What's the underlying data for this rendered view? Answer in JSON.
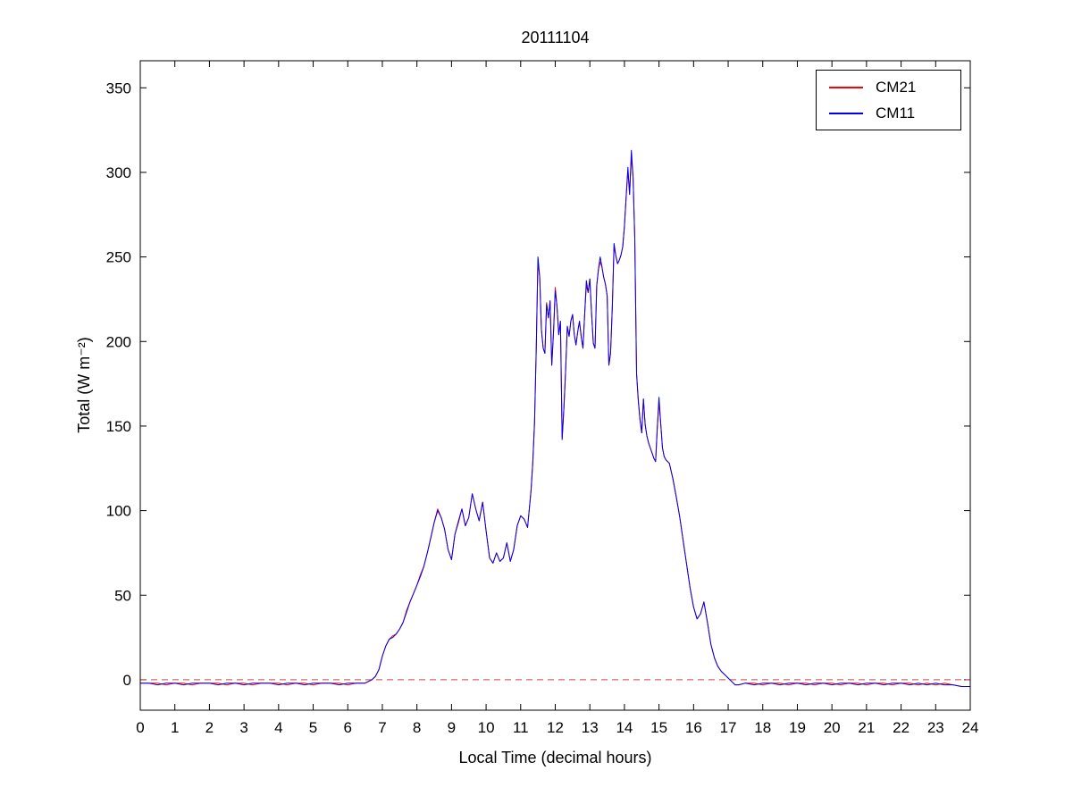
{
  "figure": {
    "background": "#ffffff"
  },
  "chart_data": {
    "type": "line",
    "title": "20111104",
    "xlabel": "Local Time (decimal hours)",
    "ylabel": "Total (W m⁻²)",
    "xlim": [
      0,
      24
    ],
    "ylim": [
      -18,
      366
    ],
    "xticks": [
      0,
      1,
      2,
      3,
      4,
      5,
      6,
      7,
      8,
      9,
      10,
      11,
      12,
      13,
      14,
      15,
      16,
      17,
      18,
      19,
      20,
      21,
      22,
      23,
      24
    ],
    "yticks": [
      0,
      50,
      100,
      150,
      200,
      250,
      300,
      350
    ],
    "grid": false,
    "axis_color": "#000000",
    "legend": {
      "position": "top-right",
      "border": true
    },
    "zero_line": {
      "y": 0,
      "style": "dashed",
      "color": "#cc4444"
    },
    "x": [
      0,
      0.25,
      0.5,
      0.75,
      1,
      1.25,
      1.5,
      1.75,
      2,
      2.25,
      2.5,
      2.75,
      3,
      3.25,
      3.5,
      3.75,
      4,
      4.25,
      4.5,
      4.75,
      5,
      5.25,
      5.5,
      5.75,
      6,
      6.25,
      6.5,
      6.7,
      6.8,
      6.9,
      7,
      7.1,
      7.2,
      7.3,
      7.4,
      7.5,
      7.6,
      7.7,
      7.8,
      7.9,
      8,
      8.1,
      8.2,
      8.3,
      8.4,
      8.5,
      8.6,
      8.7,
      8.8,
      8.9,
      9,
      9.1,
      9.2,
      9.3,
      9.4,
      9.5,
      9.6,
      9.7,
      9.8,
      9.9,
      10,
      10.1,
      10.2,
      10.3,
      10.4,
      10.5,
      10.6,
      10.7,
      10.8,
      10.9,
      11,
      11.1,
      11.2,
      11.3,
      11.35,
      11.4,
      11.45,
      11.5,
      11.55,
      11.6,
      11.65,
      11.7,
      11.75,
      11.8,
      11.85,
      11.9,
      11.95,
      12,
      12.05,
      12.1,
      12.15,
      12.2,
      12.25,
      12.3,
      12.35,
      12.4,
      12.45,
      12.5,
      12.55,
      12.6,
      12.65,
      12.7,
      12.75,
      12.8,
      12.85,
      12.9,
      12.95,
      13,
      13.05,
      13.1,
      13.15,
      13.2,
      13.25,
      13.3,
      13.35,
      13.4,
      13.45,
      13.5,
      13.55,
      13.6,
      13.65,
      13.7,
      13.75,
      13.8,
      13.85,
      13.9,
      13.95,
      14,
      14.05,
      14.1,
      14.15,
      14.2,
      14.25,
      14.3,
      14.35,
      14.4,
      14.45,
      14.5,
      14.55,
      14.6,
      14.65,
      14.7,
      14.75,
      14.8,
      14.85,
      14.9,
      14.95,
      15,
      15.05,
      15.1,
      15.15,
      15.2,
      15.3,
      15.4,
      15.5,
      15.6,
      15.7,
      15.8,
      15.9,
      16,
      16.1,
      16.2,
      16.3,
      16.4,
      16.5,
      16.6,
      16.7,
      16.8,
      16.9,
      17,
      17.1,
      17.2,
      17.3,
      17.5,
      17.75,
      18,
      18.25,
      18.5,
      18.75,
      19,
      19.25,
      19.5,
      19.75,
      20,
      20.25,
      20.5,
      20.75,
      21,
      21.25,
      21.5,
      21.75,
      22,
      22.25,
      22.5,
      22.75,
      23,
      23.25,
      23.5,
      23.75,
      24
    ],
    "series": [
      {
        "name": "CM21",
        "color": "#ff0000",
        "values": [
          -2,
          -2,
          -2,
          -3,
          -2,
          -2,
          -3,
          -2,
          -2,
          -2,
          -3,
          -2,
          -2,
          -3,
          -2,
          -2,
          -2,
          -3,
          -2,
          -2,
          -3,
          -2,
          -2,
          -2,
          -3,
          -2,
          -2,
          0,
          2,
          6,
          14,
          20,
          24,
          26,
          27,
          30,
          34,
          41,
          46,
          51,
          56,
          62,
          67,
          75,
          84,
          93,
          101,
          96,
          89,
          77,
          71,
          86,
          94,
          101,
          91,
          96,
          110,
          101,
          94,
          105,
          88,
          72,
          69,
          75,
          70,
          72,
          81,
          70,
          77,
          91,
          97,
          95,
          90,
          112,
          128,
          152,
          196,
          247,
          238,
          207,
          196,
          193,
          223,
          214,
          224,
          186,
          206,
          232,
          221,
          204,
          212,
          143,
          161,
          183,
          209,
          203,
          212,
          216,
          204,
          198,
          206,
          212,
          203,
          196,
          216,
          233,
          229,
          237,
          217,
          199,
          196,
          233,
          243,
          247,
          244,
          238,
          234,
          227,
          186,
          193,
          221,
          256,
          251,
          246,
          248,
          251,
          256,
          268,
          286,
          301,
          287,
          309,
          297,
          261,
          181,
          166,
          154,
          146,
          166,
          151,
          144,
          140,
          137,
          134,
          131,
          129,
          149,
          164,
          151,
          137,
          132,
          130,
          128,
          119,
          108,
          96,
          82,
          68,
          54,
          43,
          36,
          39,
          46,
          34,
          21,
          13,
          8,
          5,
          3,
          1,
          -1,
          -3,
          -3,
          -2,
          -2,
          -3,
          -2,
          -2,
          -3,
          -2,
          -2,
          -3,
          -2,
          -2,
          -3,
          -2,
          -2,
          -3,
          -2,
          -2,
          -3,
          -2,
          -2,
          -3,
          -2,
          -3,
          -2,
          -3,
          -4,
          -4
        ]
      },
      {
        "name": "CM11",
        "color": "#0000ee",
        "values": [
          -2,
          -2,
          -3,
          -2,
          -2,
          -3,
          -2,
          -2,
          -2,
          -3,
          -2,
          -2,
          -3,
          -2,
          -2,
          -2,
          -3,
          -2,
          -2,
          -3,
          -2,
          -2,
          -2,
          -3,
          -2,
          -2,
          -2,
          0,
          2,
          6,
          14,
          20,
          24,
          25,
          27,
          30,
          34,
          40,
          46,
          51,
          56,
          61,
          67,
          75,
          84,
          93,
          100,
          96,
          89,
          77,
          71,
          86,
          93,
          101,
          91,
          96,
          110,
          101,
          94,
          105,
          88,
          72,
          69,
          75,
          70,
          72,
          81,
          70,
          77,
          91,
          97,
          95,
          90,
          112,
          128,
          152,
          195,
          250,
          238,
          207,
          196,
          193,
          222,
          214,
          224,
          186,
          206,
          230,
          221,
          204,
          212,
          142,
          161,
          183,
          209,
          203,
          212,
          216,
          204,
          198,
          206,
          212,
          203,
          196,
          216,
          236,
          229,
          237,
          217,
          199,
          196,
          233,
          243,
          250,
          244,
          238,
          234,
          227,
          186,
          193,
          221,
          258,
          251,
          246,
          248,
          251,
          256,
          268,
          286,
          303,
          287,
          313,
          297,
          261,
          181,
          165,
          154,
          146,
          166,
          151,
          144,
          140,
          137,
          134,
          131,
          129,
          149,
          167,
          151,
          137,
          132,
          130,
          128,
          119,
          108,
          96,
          82,
          68,
          54,
          43,
          36,
          39,
          46,
          34,
          21,
          13,
          8,
          5,
          3,
          1,
          -1,
          -3,
          -3,
          -2,
          -3,
          -2,
          -2,
          -3,
          -2,
          -2,
          -3,
          -2,
          -2,
          -3,
          -2,
          -2,
          -3,
          -2,
          -2,
          -3,
          -2,
          -2,
          -3,
          -2,
          -3,
          -2,
          -3,
          -3,
          -4,
          -4
        ]
      }
    ]
  }
}
